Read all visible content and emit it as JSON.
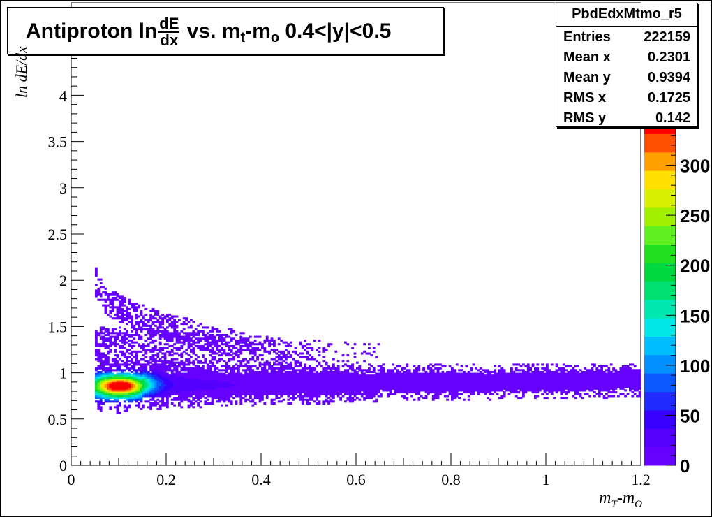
{
  "title": {
    "prefix": "Antiproton ln",
    "frac_num": "dE",
    "frac_den": "dx",
    "mid": " vs. m",
    "sub_t": "t",
    "dash": "-m",
    "sub_o": "o",
    "suffix": " 0.4<|y|<0.5"
  },
  "stats": {
    "name": "PbdEdxMtmo_r5",
    "rows": [
      {
        "label": "Entries",
        "value": "222159"
      },
      {
        "label": "Mean x",
        "value": "0.2301"
      },
      {
        "label": "Mean y",
        "value": "0.9394"
      },
      {
        "label": "RMS x",
        "value": "0.1725"
      },
      {
        "label": "RMS y",
        "value": "0.142"
      }
    ]
  },
  "axis_titles": {
    "y": "ln dE/dx",
    "x_main": "m",
    "x_sub1": "T",
    "x_dash": "-m",
    "x_sub2": "O"
  },
  "colors": {
    "palette": [
      "#6600ff",
      "#5500ff",
      "#3a00ff",
      "#1f2bff",
      "#0a5aff",
      "#0090ff",
      "#00bfff",
      "#00e8e8",
      "#00e8b0",
      "#00e070",
      "#00d840",
      "#20e020",
      "#60f020",
      "#a0f000",
      "#d8f000",
      "#ffe000",
      "#ffa000",
      "#ff5000",
      "#ff0000"
    ]
  },
  "chart_data": {
    "type": "heatmap",
    "title": "Antiproton ln dE/dx vs. m_t-m_o 0.4<|y|<0.5",
    "xlabel": "m_T-m_O",
    "ylabel": "ln dE/dx",
    "xlim": [
      0,
      1.2
    ],
    "ylim": [
      0,
      5
    ],
    "x_ticks": [
      "0",
      "0.2",
      "0.4",
      "0.6",
      "0.8",
      "1",
      "1.2"
    ],
    "y_ticks": [
      "0",
      "0.5",
      "1",
      "1.5",
      "2",
      "2.5",
      "3",
      "3.5",
      "4",
      "4.5"
    ],
    "zlim": [
      0,
      350
    ],
    "z_ticks": [
      "0",
      "50",
      "100",
      "150",
      "200",
      "250",
      "300"
    ],
    "grid": false,
    "bands": [
      {
        "name": "main band",
        "x_range": [
          0.05,
          1.2
        ],
        "y_center": [
          0.86,
          0.92
        ],
        "y_width": [
          0.09,
          0.08
        ],
        "peak_x": 0.1,
        "peak_z": 340
      },
      {
        "name": "upper band",
        "x_range": [
          0.05,
          0.5
        ],
        "y_center": [
          2.0,
          1.2
        ],
        "y_width": [
          0.06,
          0.06
        ],
        "peak_z": 15
      },
      {
        "name": "halo",
        "x_range": [
          0.05,
          0.65
        ],
        "y_center": [
          1.3,
          1.3
        ],
        "y_width": [
          0.15,
          0.15
        ],
        "peak_z": 8
      }
    ]
  }
}
